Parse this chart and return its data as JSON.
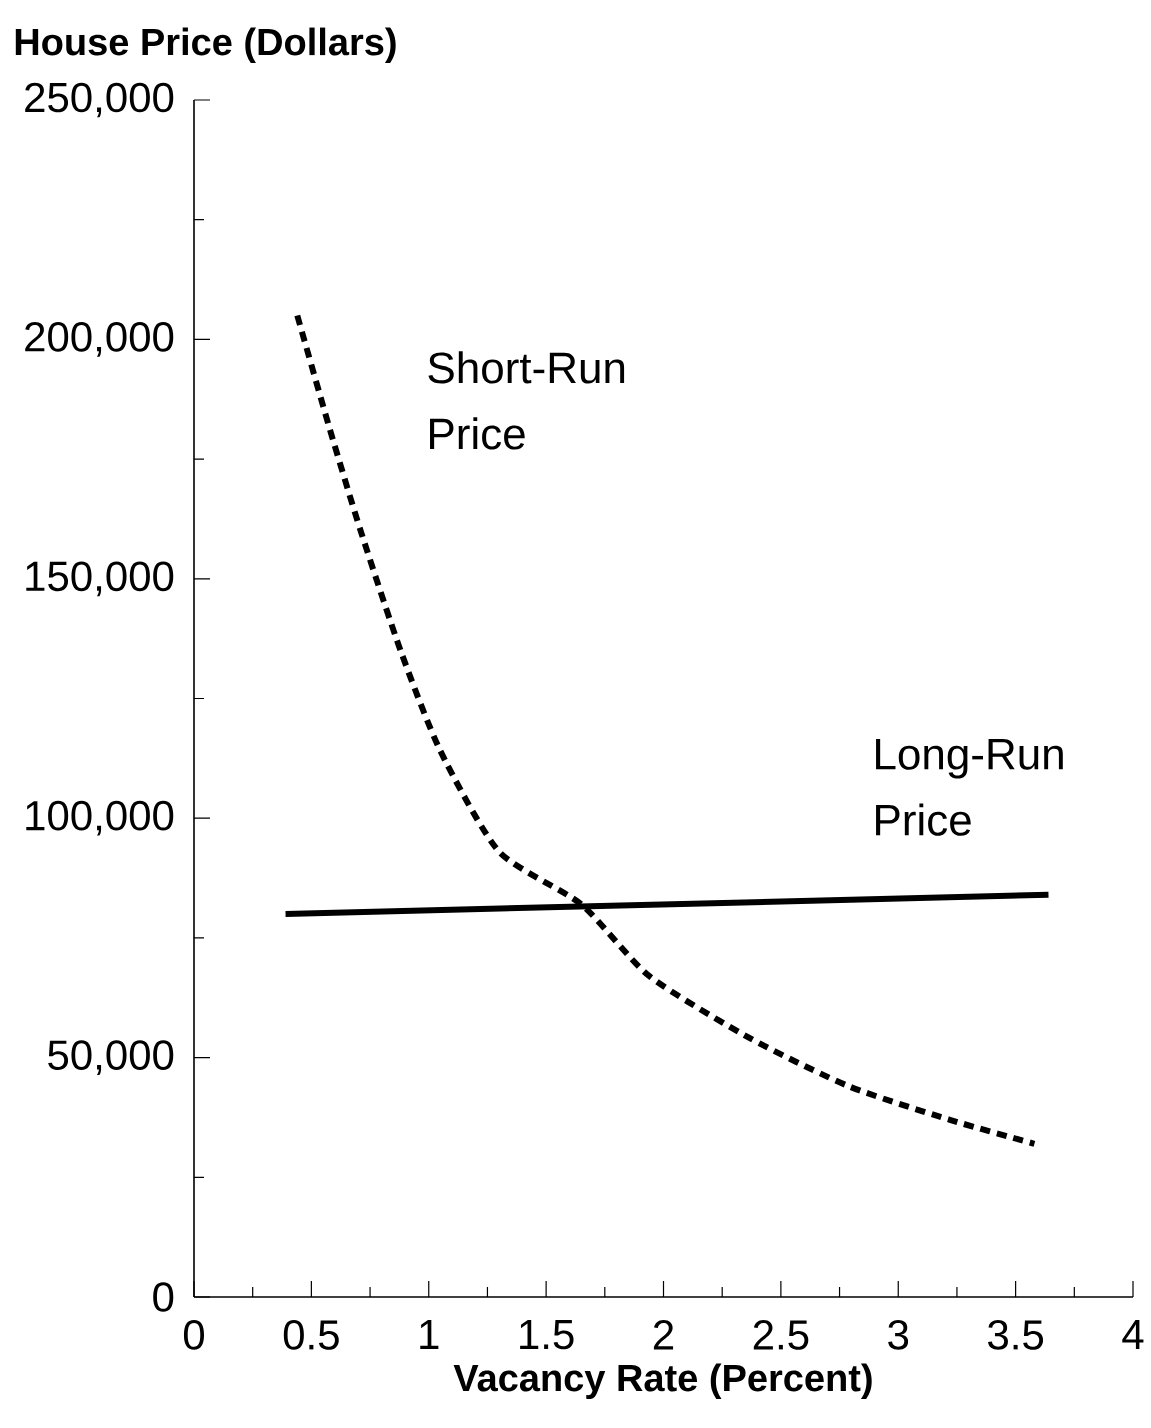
{
  "chart_data": {
    "type": "line",
    "xlabel": "Vacancy Rate (Percent)",
    "ylabel": "House Price (Dollars)",
    "xlim": [
      0,
      4
    ],
    "ylim": [
      0,
      250000
    ],
    "xticks": [
      0,
      {
        "value": 0.25,
        "label": null
      },
      0.5,
      {
        "value": 0.75,
        "label": null
      },
      1,
      {
        "value": 1.25,
        "label": null
      },
      1.5,
      {
        "value": 1.75,
        "label": null
      },
      2,
      {
        "value": 2.25,
        "label": null
      },
      2.5,
      {
        "value": 2.75,
        "label": null
      },
      3,
      {
        "value": 3.25,
        "label": null
      },
      3.5,
      {
        "value": 3.75,
        "label": null
      },
      4
    ],
    "yticks": [
      0,
      {
        "value": 25000,
        "label": null
      },
      {
        "value": 50000,
        "label": "50,000"
      },
      {
        "value": 75000,
        "label": null
      },
      {
        "value": 100000,
        "label": "100,000"
      },
      {
        "value": 125000,
        "label": null
      },
      {
        "value": 150000,
        "label": "150,000"
      },
      {
        "value": 175000,
        "label": null
      },
      {
        "value": 200000,
        "label": "200,000"
      },
      {
        "value": 225000,
        "label": null
      },
      {
        "value": 250000,
        "label": "250,000"
      }
    ],
    "grid": false,
    "legend": false,
    "series": [
      {
        "name": "Short-Run Price",
        "color": "#000000",
        "line_style": "dashed",
        "x": [
          0.44,
          0.58,
          0.71,
          0.88,
          1.05,
          1.3,
          1.65,
          1.94,
          2.37,
          2.79,
          3.22,
          3.58
        ],
        "values": [
          205000,
          181000,
          160000,
          135000,
          114000,
          93000,
          82000,
          67000,
          54000,
          44000,
          37000,
          32000
        ]
      },
      {
        "name": "Long-Run Price",
        "color": "#000000",
        "line_style": "solid",
        "x": [
          0.39,
          3.64
        ],
        "values": [
          80000,
          84000
        ]
      }
    ]
  }
}
